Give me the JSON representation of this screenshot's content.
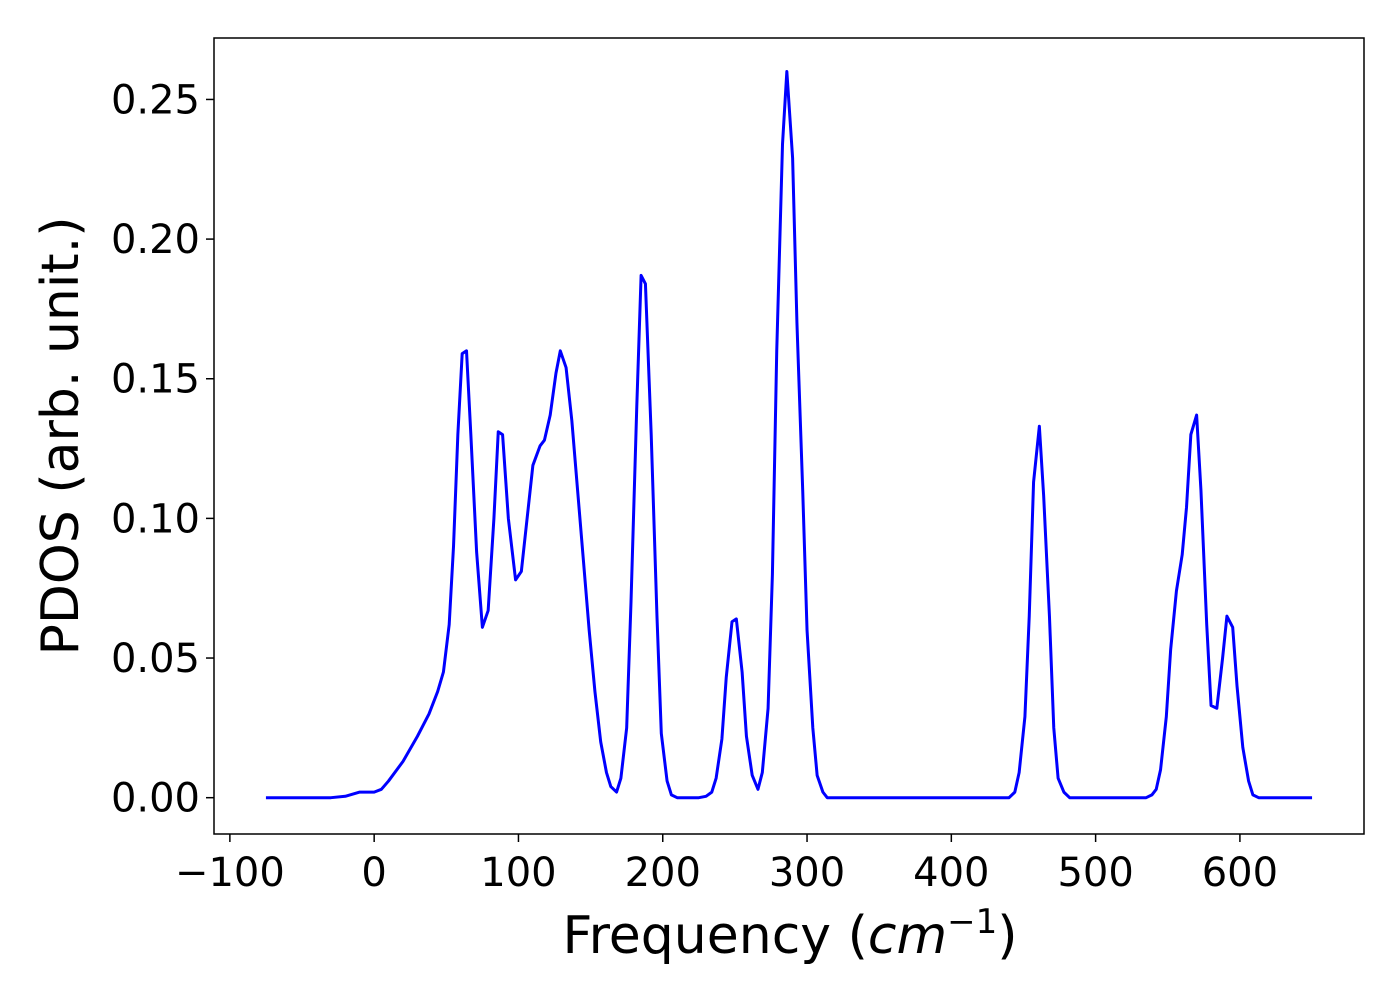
{
  "chart_data": {
    "type": "line",
    "xlabel": [
      "Frequency (",
      "cm",
      "−1",
      ")"
    ],
    "ylabel": "PDOS (arb. unit.)",
    "color": "#0000ff",
    "xlim": [
      -111,
      686
    ],
    "ylim": [
      -0.013,
      0.272
    ],
    "xticks": [
      {
        "value": -100,
        "label": "−100"
      },
      0,
      100,
      200,
      300,
      400,
      500,
      600
    ],
    "yticks": [
      {
        "value": 0,
        "label": "0.00"
      },
      {
        "value": 0.05,
        "label": "0.05"
      },
      {
        "value": 0.1,
        "label": "0.10"
      },
      {
        "value": 0.15,
        "label": "0.15"
      },
      {
        "value": 0.2,
        "label": "0.20"
      },
      {
        "value": 0.25,
        "label": "0.25"
      }
    ],
    "grid": false,
    "x": [
      -75,
      -30,
      -20,
      -10,
      0,
      5,
      10,
      20,
      30,
      38,
      44,
      48,
      52,
      55,
      58,
      61,
      64,
      67,
      71,
      75,
      79,
      83,
      86,
      89,
      93,
      98,
      102,
      106,
      110,
      115,
      118,
      122,
      126,
      129,
      133,
      137,
      141,
      145,
      149,
      153,
      157,
      161,
      164,
      168,
      171,
      175,
      178,
      182,
      185,
      188,
      192,
      196,
      199,
      203,
      206,
      210,
      225,
      230,
      234,
      237,
      241,
      244,
      248,
      251,
      255,
      258,
      262,
      266,
      269,
      273,
      276,
      279,
      283,
      286,
      290,
      293,
      297,
      300,
      304,
      307,
      311,
      314,
      440,
      444,
      447,
      451,
      454,
      457,
      461,
      464,
      468,
      471,
      474,
      478,
      482,
      535,
      539,
      542,
      545,
      549,
      552,
      556,
      560,
      563,
      566,
      570,
      573,
      577,
      580,
      584,
      588,
      591,
      595,
      598,
      602,
      606,
      609,
      613,
      650
    ],
    "values": [
      0,
      0,
      0.0005,
      0.002,
      0.002,
      0.003,
      0.006,
      0.013,
      0.022,
      0.03,
      0.038,
      0.045,
      0.062,
      0.09,
      0.13,
      0.159,
      0.16,
      0.13,
      0.088,
      0.061,
      0.067,
      0.1,
      0.131,
      0.13,
      0.1,
      0.078,
      0.081,
      0.1,
      0.119,
      0.126,
      0.128,
      0.137,
      0.152,
      0.16,
      0.154,
      0.135,
      0.11,
      0.085,
      0.06,
      0.038,
      0.02,
      0.009,
      0.004,
      0.002,
      0.007,
      0.025,
      0.07,
      0.14,
      0.187,
      0.184,
      0.13,
      0.065,
      0.023,
      0.006,
      0.001,
      0,
      0,
      0.0005,
      0.002,
      0.007,
      0.021,
      0.043,
      0.063,
      0.064,
      0.045,
      0.022,
      0.008,
      0.003,
      0.009,
      0.032,
      0.08,
      0.16,
      0.234,
      0.26,
      0.229,
      0.17,
      0.11,
      0.06,
      0.025,
      0.008,
      0.002,
      0,
      0,
      0.002,
      0.009,
      0.029,
      0.065,
      0.113,
      0.133,
      0.108,
      0.065,
      0.025,
      0.007,
      0.002,
      0,
      0,
      0.001,
      0.003,
      0.01,
      0.029,
      0.053,
      0.074,
      0.087,
      0.104,
      0.13,
      0.137,
      0.11,
      0.062,
      0.033,
      0.032,
      0.05,
      0.065,
      0.061,
      0.04,
      0.018,
      0.006,
      0.001,
      0,
      0
    ]
  }
}
